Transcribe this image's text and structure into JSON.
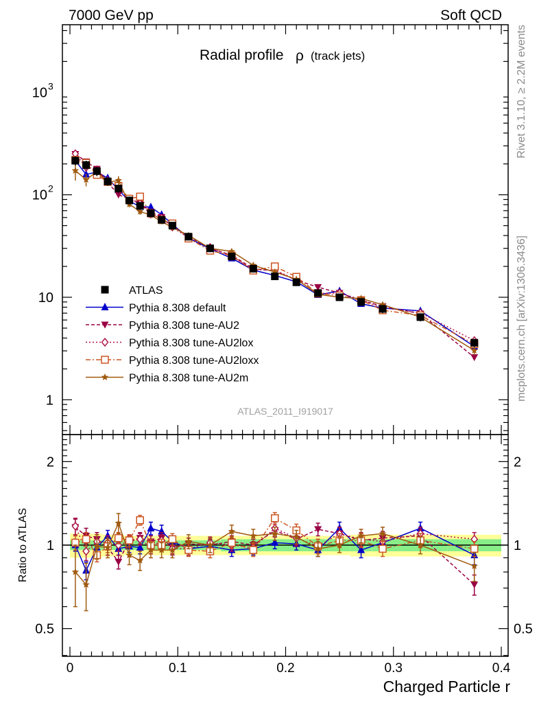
{
  "header": {
    "left": "7000 GeV pp",
    "right": "Soft QCD"
  },
  "side_labels": {
    "rivet": "Rivet 3.1.10, ≥ 2.2M events",
    "mcplots": "mcplots.cern.ch [arXiv:1306.3436]"
  },
  "chart_data": {
    "type": "line",
    "title": "Radial profile",
    "title_symbol": "ρ",
    "title_suffix": "(track jets)",
    "analysis_id": "ATLAS_2011_I919017",
    "xlabel": "Charged Particle r",
    "xlim": [
      0,
      0.4
    ],
    "x_ticks": [
      0,
      0.1,
      0.2,
      0.3,
      0.4
    ],
    "x_tick_labels": [
      "0",
      "0.1",
      "0.2",
      "0.3",
      "0.4"
    ],
    "top_panel": {
      "yscale": "log",
      "ylim": [
        0.5,
        5000
      ],
      "y_ticks": [
        1,
        10,
        100,
        1000
      ],
      "y_tick_labels": [
        "1",
        "10",
        "10²",
        "10³"
      ]
    },
    "ratio_panel": {
      "ylabel": "Ratio to ATLAS",
      "yscale": "log",
      "ylim": [
        0.4,
        2.5
      ],
      "y_ticks": [
        0.5,
        1,
        2
      ],
      "y_tick_labels": [
        "0.5",
        "1",
        "2"
      ]
    },
    "legend_position": "lower-left",
    "x": [
      0.005,
      0.015,
      0.025,
      0.035,
      0.045,
      0.055,
      0.065,
      0.075,
      0.085,
      0.095,
      0.11,
      0.13,
      0.15,
      0.17,
      0.19,
      0.21,
      0.23,
      0.25,
      0.27,
      0.29,
      0.325,
      0.375
    ],
    "data": {
      "name": "ATLAS",
      "values": [
        215,
        195,
        170,
        135,
        115,
        88,
        78,
        66,
        57,
        50,
        39,
        30,
        25,
        19,
        16,
        14,
        11,
        10,
        9,
        7.7,
        6.4,
        3.6
      ],
      "band_stat": [
        0.04,
        0.04,
        0.04,
        0.04,
        0.04,
        0.04,
        0.04,
        0.04,
        0.04,
        0.04,
        0.04,
        0.04,
        0.05,
        0.05,
        0.05,
        0.05,
        0.05,
        0.05,
        0.05,
        0.05,
        0.05,
        0.05
      ],
      "band_total": [
        0.1,
        0.1,
        0.1,
        0.09,
        0.09,
        0.08,
        0.08,
        0.08,
        0.08,
        0.08,
        0.08,
        0.08,
        0.08,
        0.08,
        0.08,
        0.08,
        0.08,
        0.08,
        0.09,
        0.09,
        0.09,
        0.09
      ],
      "color": "#000000"
    },
    "series": [
      {
        "name": "Pythia 8.308 default",
        "color": "#0000cc",
        "dash": "solid",
        "marker": "triangle-up",
        "ratio": [
          1.0,
          0.81,
          0.98,
          1.08,
          0.97,
          0.99,
          0.98,
          1.15,
          1.12,
          1.03,
          0.97,
          0.99,
          0.96,
          0.97,
          1.02,
          1.01,
          0.96,
          1.15,
          0.96,
          1.02,
          1.15,
          0.92
        ],
        "ratio_err": [
          0.05,
          0.06,
          0.05,
          0.05,
          0.05,
          0.05,
          0.05,
          0.06,
          0.06,
          0.05,
          0.05,
          0.05,
          0.05,
          0.05,
          0.05,
          0.05,
          0.05,
          0.06,
          0.06,
          0.06,
          0.06,
          0.07
        ]
      },
      {
        "name": "Pythia 8.308 tune-AU2",
        "color": "#990044",
        "dash": "dashed",
        "marker": "triangle-down",
        "ratio": [
          1.16,
          1.08,
          1.05,
          0.98,
          0.87,
          1.04,
          1.06,
          1.03,
          1.06,
          0.98,
          1.01,
          1.0,
          1.03,
          1.0,
          1.13,
          1.05,
          1.14,
          1.1,
          1.04,
          1.06,
          1.08,
          0.72
        ],
        "ratio_err": [
          0.08,
          0.07,
          0.06,
          0.06,
          0.05,
          0.05,
          0.05,
          0.05,
          0.05,
          0.05,
          0.05,
          0.05,
          0.05,
          0.05,
          0.06,
          0.06,
          0.06,
          0.06,
          0.06,
          0.06,
          0.06,
          0.06
        ]
      },
      {
        "name": "Pythia 8.308 tune-AU2lox",
        "color": "#aa1144",
        "dash": "dotted",
        "marker": "diamond-open",
        "ratio": [
          1.17,
          0.95,
          1.03,
          1.02,
          1.0,
          1.03,
          1.05,
          0.98,
          1.04,
          0.97,
          0.97,
          1.02,
          1.0,
          0.98,
          1.15,
          1.06,
          0.99,
          1.1,
          1.05,
          1.03,
          1.1,
          1.05
        ],
        "ratio_err": [
          0.08,
          0.07,
          0.06,
          0.06,
          0.05,
          0.05,
          0.05,
          0.05,
          0.05,
          0.05,
          0.05,
          0.05,
          0.05,
          0.05,
          0.06,
          0.06,
          0.06,
          0.06,
          0.06,
          0.06,
          0.06,
          0.06
        ]
      },
      {
        "name": "Pythia 8.308 tune-AU2loxx",
        "color": "#cc5522",
        "dash": "dashdot",
        "marker": "square-open",
        "ratio": [
          1.02,
          1.05,
          0.92,
          0.99,
          1.06,
          1.04,
          1.23,
          1.0,
          1.0,
          1.05,
          0.96,
          0.95,
          1.02,
          0.96,
          1.25,
          1.13,
          0.99,
          1.04,
          1.04,
          0.97,
          1.04,
          0.97
        ],
        "ratio_err": [
          0.06,
          0.06,
          0.05,
          0.05,
          0.05,
          0.05,
          0.05,
          0.05,
          0.05,
          0.05,
          0.05,
          0.05,
          0.05,
          0.05,
          0.06,
          0.06,
          0.06,
          0.06,
          0.06,
          0.06,
          0.06,
          0.06
        ]
      },
      {
        "name": "Pythia 8.308 tune-AU2m",
        "color": "#a05a10",
        "dash": "solid",
        "marker": "star",
        "ratio": [
          0.8,
          0.72,
          0.99,
          0.98,
          1.2,
          0.92,
          0.88,
          0.96,
          0.96,
          0.96,
          1.03,
          1.0,
          1.12,
          1.08,
          1.1,
          1.07,
          0.97,
          1.0,
          1.08,
          1.1,
          1.0,
          0.84
        ],
        "ratio_err": [
          0.2,
          0.14,
          0.1,
          0.08,
          0.1,
          0.07,
          0.07,
          0.06,
          0.06,
          0.06,
          0.06,
          0.06,
          0.06,
          0.06,
          0.06,
          0.06,
          0.06,
          0.06,
          0.06,
          0.06,
          0.07,
          0.1
        ]
      }
    ]
  }
}
